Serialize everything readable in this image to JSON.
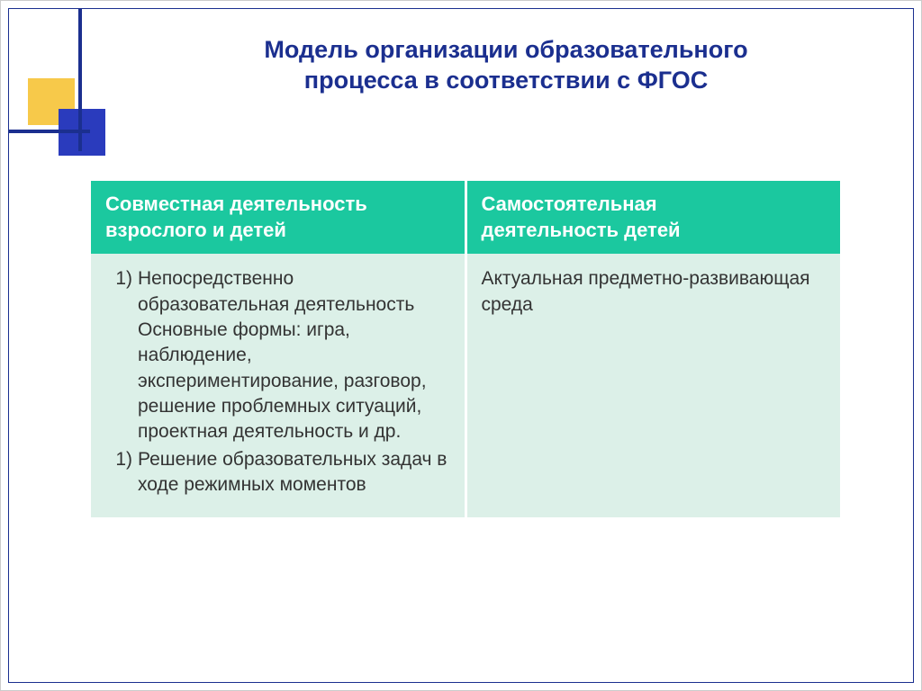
{
  "title_line1": "Модель организации образовательного",
  "title_line2": "процесса в соответствии с ФГОС",
  "colors": {
    "accent_blue": "#1b2f8f",
    "square_yellow": "#f7c94a",
    "square_blue": "#2a3bbd",
    "header_bg": "#1bc89f",
    "header_fg": "#ffffff",
    "body_bg": "#dcf0e8",
    "body_fg": "#333333"
  },
  "table": {
    "headers": {
      "col1_l1": "Совместная деятельность",
      "col1_l2": "взрослого и детей",
      "col2_l1": "Самостоятельная",
      "col2_l2": "деятельность детей"
    },
    "left_items": [
      {
        "num": "1)",
        "text": "Непосредственно образовательная деятельность Основные формы: игра, наблюдение, экспериментирование, разговор, решение проблемных ситуаций, проектная деятельность и др."
      },
      {
        "num": "1)",
        "text": "Решение образовательных задач в ходе режимных моментов"
      }
    ],
    "right_text": "Актуальная предметно-развивающая среда"
  }
}
